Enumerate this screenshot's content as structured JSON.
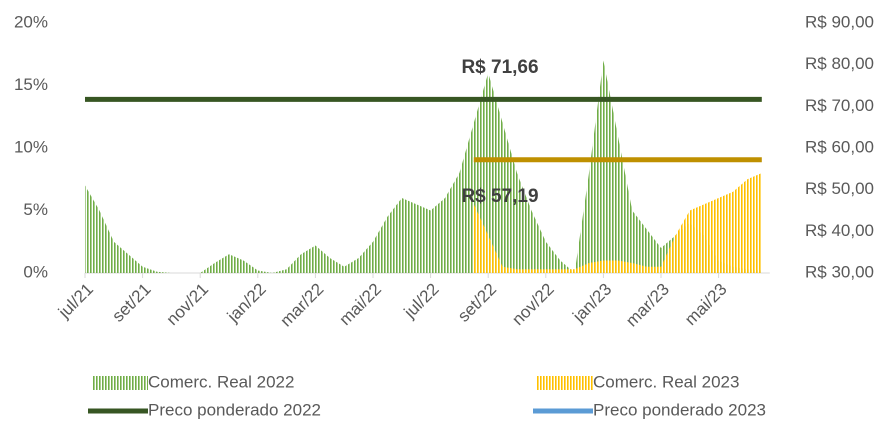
{
  "chart_data": {
    "type": "combo",
    "categories": [
      "jul/21",
      null,
      null,
      null,
      "set/21",
      null,
      null,
      null,
      "nov/21",
      null,
      null,
      null,
      "jan/22",
      null,
      null,
      null,
      "mar/22",
      null,
      null,
      null,
      "mai/22",
      null,
      null,
      null,
      "jul/22",
      null,
      null,
      null,
      "set/22",
      null,
      null,
      null,
      "nov/22",
      null,
      null,
      null,
      "jan/23",
      null,
      null,
      null,
      "mar/23",
      null,
      null,
      null,
      "mai/23",
      null,
      null,
      null
    ],
    "series": [
      {
        "name": "Comerc. Real 2022",
        "kind": "area",
        "color": "#70ad47",
        "values": [
          7,
          5,
          2.5,
          1.5,
          0.5,
          0.1,
          0,
          0,
          0,
          0.8,
          1.5,
          1,
          0.2,
          0,
          0.3,
          1.5,
          2.2,
          1.2,
          0.5,
          1.2,
          2.5,
          4.5,
          6,
          5.5,
          5,
          6,
          8,
          12,
          16,
          12,
          8,
          5,
          2.5,
          1,
          0,
          8,
          17,
          11,
          5,
          3.5,
          2,
          3,
          4,
          3,
          1,
          0.5,
          0.3,
          0.2
        ]
      },
      {
        "name": "Comerc. Real 2023",
        "kind": "area",
        "color": "#ffc000",
        "values": [
          null,
          null,
          null,
          null,
          null,
          null,
          null,
          null,
          null,
          null,
          null,
          null,
          null,
          null,
          null,
          null,
          null,
          null,
          null,
          null,
          null,
          null,
          null,
          null,
          null,
          null,
          null,
          5.5,
          3,
          0.5,
          0.3,
          0.3,
          0.3,
          0.3,
          0.3,
          0.8,
          1,
          1,
          0.8,
          0.5,
          0.5,
          3,
          5,
          5.5,
          6,
          6.5,
          7.5,
          8
        ]
      },
      {
        "name": "Preco ponderado 2022",
        "kind": "line",
        "axis": "y2",
        "color": "#375623",
        "values": [
          71.66,
          71.66,
          71.66,
          71.66,
          71.66,
          71.66,
          71.66,
          71.66,
          71.66,
          71.66,
          71.66,
          71.66,
          71.66,
          71.66,
          71.66,
          71.66,
          71.66,
          71.66,
          71.66,
          71.66,
          71.66,
          71.66,
          71.66,
          71.66,
          71.66,
          71.66,
          71.66,
          71.66,
          71.66,
          71.66,
          71.66,
          71.66,
          71.66,
          71.66,
          71.66,
          71.66,
          71.66,
          71.66,
          71.66,
          71.66,
          71.66,
          71.66,
          71.66,
          71.66,
          71.66,
          71.66,
          71.66,
          71.66
        ]
      },
      {
        "name": "Preco ponderado 2023",
        "kind": "line",
        "axis": "y2",
        "color": "#bf9000",
        "legend_color": "#5b9bd5",
        "values": [
          null,
          null,
          null,
          null,
          null,
          null,
          null,
          null,
          null,
          null,
          null,
          null,
          null,
          null,
          null,
          null,
          null,
          null,
          null,
          null,
          null,
          null,
          null,
          null,
          null,
          null,
          null,
          57.19,
          57.19,
          57.19,
          57.19,
          57.19,
          57.19,
          57.19,
          57.19,
          57.19,
          57.19,
          57.19,
          57.19,
          57.19,
          57.19,
          57.19,
          57.19,
          57.19,
          57.19,
          57.19,
          57.19,
          57.19
        ]
      }
    ],
    "annotations": [
      "R$ 71,66",
      "R$ 57,19"
    ],
    "ylim": [
      0,
      20
    ],
    "yticks": [
      {
        "value": 0,
        "label": "0%"
      },
      {
        "value": 5,
        "label": "5%"
      },
      {
        "value": 10,
        "label": "10%"
      },
      {
        "value": 15,
        "label": "15%"
      },
      {
        "value": 20,
        "label": "20%"
      }
    ],
    "y2lim": [
      30,
      90
    ],
    "y2ticks": [
      {
        "value": 30,
        "label": "R$ 30,00"
      },
      {
        "value": 40,
        "label": "R$ 40,00"
      },
      {
        "value": 50,
        "label": "R$ 50,00"
      },
      {
        "value": 60,
        "label": "R$ 60,00"
      },
      {
        "value": 70,
        "label": "R$ 70,00"
      },
      {
        "value": 80,
        "label": "R$ 80,00"
      },
      {
        "value": 90,
        "label": "R$ 90,00"
      }
    ],
    "legend": "bottom"
  }
}
